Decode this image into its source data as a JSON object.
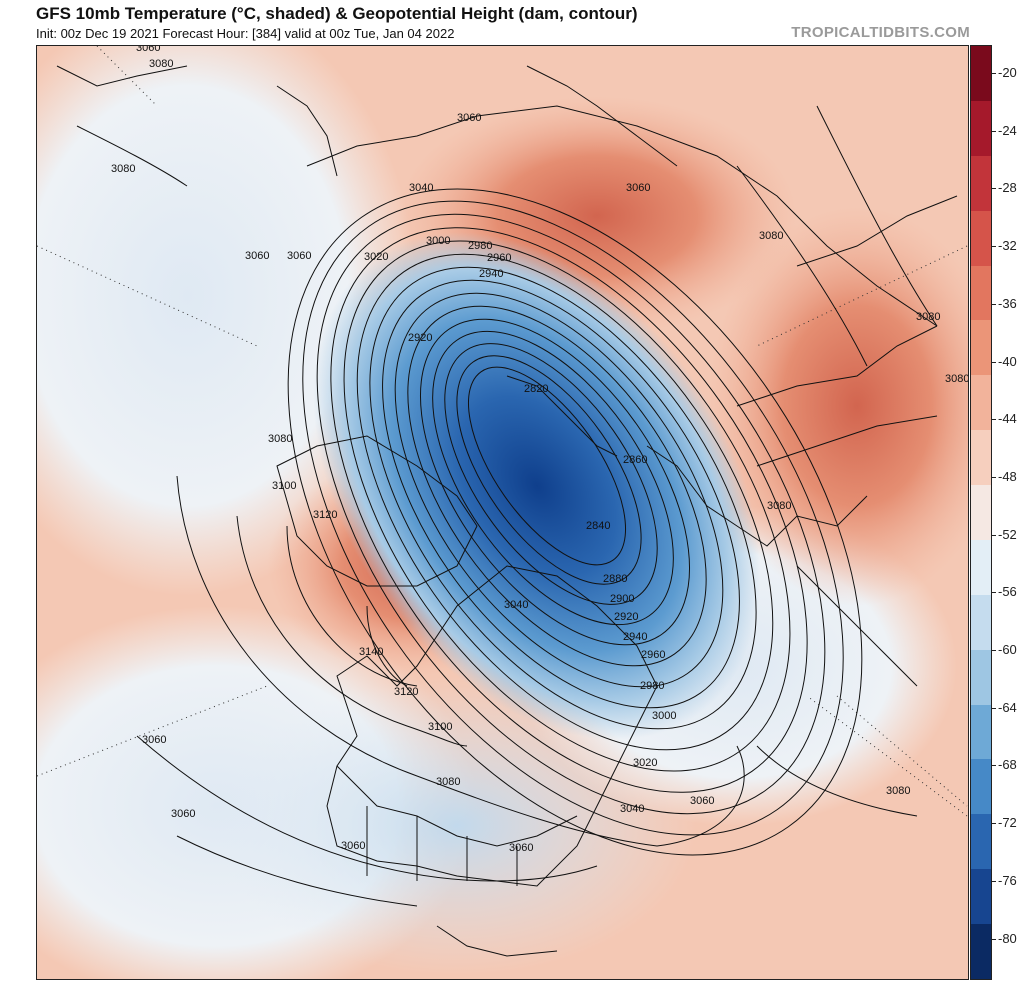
{
  "header": {
    "title": "GFS 10mb Temperature (°C, shaded) & Geopotential Height (dam, contour)",
    "subtitle": "Init: 00z Dec 19 2021   Forecast Hour: [384]   valid at 00z Tue, Jan 04 2022",
    "brand": "TROPICALTIDBITS.COM"
  },
  "colorbar": {
    "labels": [
      "-20",
      "-24",
      "-28",
      "-32",
      "-36",
      "-40",
      "-44",
      "-48",
      "-52",
      "-56",
      "-60",
      "-64",
      "-68",
      "-72",
      "-76",
      "-80"
    ],
    "colors": [
      "#7a0a1c",
      "#a5192b",
      "#c2343a",
      "#d5544a",
      "#e2765f",
      "#eb9578",
      "#f2b39b",
      "#f6cfbe",
      "#f5e8e3",
      "#e3eef6",
      "#c5dcee",
      "#9ec6e3",
      "#6ea9d6",
      "#4689c7",
      "#2a66b0",
      "#174590",
      "#0b2a63"
    ]
  },
  "contour_labels": [
    {
      "text": "3080"
    },
    {
      "text": "3080"
    },
    {
      "text": "3060"
    },
    {
      "text": "3060"
    },
    {
      "text": "3040"
    },
    {
      "text": "3020"
    },
    {
      "text": "3000"
    },
    {
      "text": "2980"
    },
    {
      "text": "2960"
    },
    {
      "text": "2940"
    },
    {
      "text": "2920"
    },
    {
      "text": "2820"
    },
    {
      "text": "2860"
    },
    {
      "text": "2840"
    },
    {
      "text": "2880"
    },
    {
      "text": "2900"
    },
    {
      "text": "2920"
    },
    {
      "text": "2940"
    },
    {
      "text": "2960"
    },
    {
      "text": "2980"
    },
    {
      "text": "3000"
    },
    {
      "text": "3020"
    },
    {
      "text": "3040"
    },
    {
      "text": "3060"
    },
    {
      "text": "3080"
    },
    {
      "text": "3100"
    },
    {
      "text": "3120"
    },
    {
      "text": "3140"
    },
    {
      "text": "3120"
    },
    {
      "text": "3100"
    },
    {
      "text": "3080"
    },
    {
      "text": "3060"
    },
    {
      "text": "3060"
    },
    {
      "text": "3060"
    },
    {
      "text": "3060"
    },
    {
      "text": "3040"
    },
    {
      "text": "3060"
    },
    {
      "text": "3080"
    },
    {
      "text": "3080"
    },
    {
      "text": "3080"
    },
    {
      "text": "3080"
    },
    {
      "text": "3080"
    },
    {
      "text": "3060"
    },
    {
      "text": "3060"
    }
  ]
}
